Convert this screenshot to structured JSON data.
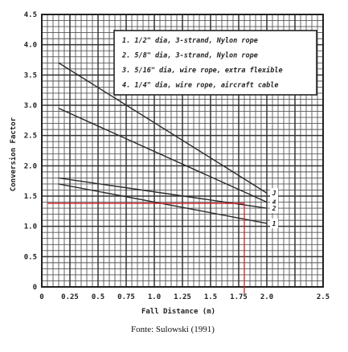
{
  "chart_data": {
    "type": "line",
    "xlabel": "Fall Distance (m)",
    "ylabel": "Conversion Factor",
    "xlim": [
      0,
      2.5
    ],
    "ylim": [
      0,
      4.5
    ],
    "x_ticks": [
      "0",
      "0.25",
      "0.5",
      "0.75",
      "1.0",
      "1.25",
      "1.5",
      "1.75",
      "2.0",
      "2.5"
    ],
    "x_tick_values": [
      0,
      0.25,
      0.5,
      0.75,
      1.0,
      1.25,
      1.5,
      1.75,
      2.0,
      2.5
    ],
    "y_ticks": [
      "0",
      "0.5",
      "1.0",
      "1.5",
      "2.0",
      "2.5",
      "3.0",
      "3.5",
      "4.0",
      "4.5"
    ],
    "y_tick_values": [
      0,
      0.5,
      1.0,
      1.5,
      2.0,
      2.5,
      3.0,
      3.5,
      4.0,
      4.5
    ],
    "grid": true,
    "legend": [
      "1. 1/2\" dia, 3-strand, Nylon rope",
      "2. 5/8\" dia, 3-strand, Nylon rope",
      "3. 5/16\" dia, wire rope, extra flexible",
      "4. 1/4\" dia, wire rope, aircraft cable"
    ],
    "legend_position": "top-right",
    "series": [
      {
        "end_label": "J",
        "x": [
          0.15,
          2.0
        ],
        "y": [
          3.7,
          1.55
        ]
      },
      {
        "end_label": "4",
        "x": [
          0.15,
          2.0
        ],
        "y": [
          2.95,
          1.4
        ]
      },
      {
        "end_label": "2",
        "x": [
          0.15,
          2.0
        ],
        "y": [
          1.8,
          1.3
        ]
      },
      {
        "end_label": "1",
        "x": [
          0.15,
          2.0
        ],
        "y": [
          1.7,
          1.05
        ]
      }
    ],
    "highlight": {
      "color": "#d21f1f",
      "x": 1.8,
      "y": 1.38
    }
  },
  "caption": "Fonte: Sulowski (1991)"
}
